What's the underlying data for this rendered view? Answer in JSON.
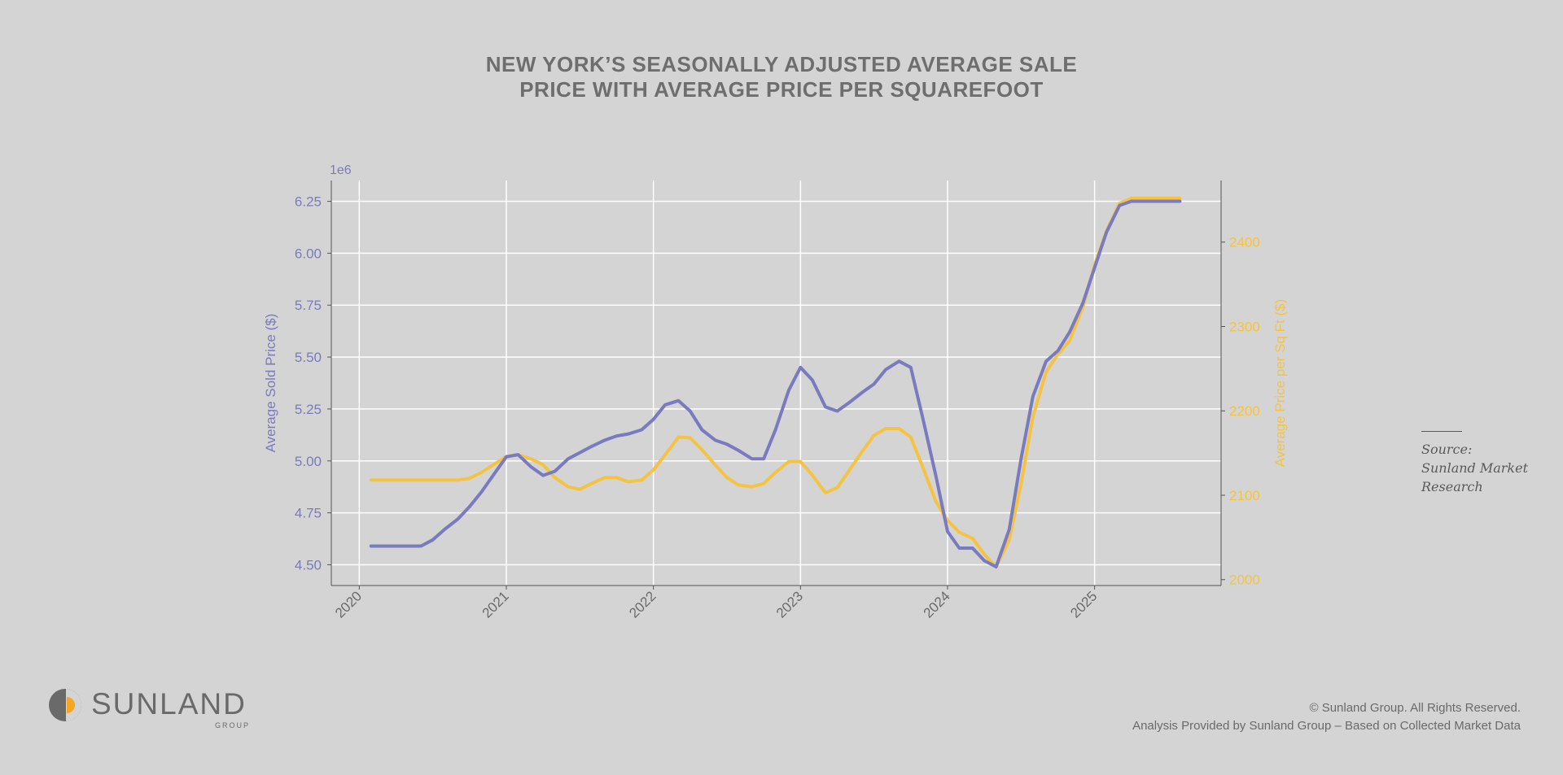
{
  "title_lines": [
    "NEW YORK’S SEASONALLY ADJUSTED AVERAGE SALE",
    "PRICE WITH AVERAGE PRICE PER SQUAREFOOT"
  ],
  "chart_data": {
    "type": "line",
    "title": "NEW YORK’S SEASONALLY ADJUSTED AVERAGE SALE PRICE WITH AVERAGE PRICE PER SQUAREFOOT",
    "xlabel": "",
    "x_ticks": [
      "2020",
      "2021",
      "2022",
      "2023",
      "2024",
      "2025"
    ],
    "x_tick_values": [
      2020.0,
      2021.0,
      2022.0,
      2023.0,
      2024.0,
      2025.0
    ],
    "xlim": [
      2019.81,
      2025.86
    ],
    "grid": true,
    "y_left": {
      "label": "Average Sold Price ($)",
      "offset_label": "1e6",
      "ticks": [
        "4.50",
        "4.75",
        "5.00",
        "5.25",
        "5.50",
        "5.75",
        "6.00",
        "6.25"
      ],
      "tick_values": [
        4.5,
        4.75,
        5.0,
        5.25,
        5.5,
        5.75,
        6.0,
        6.25
      ],
      "ylim": [
        4.4,
        6.35
      ],
      "color": "#7a7abf"
    },
    "y_right": {
      "label": "Average Price per Sq Ft ($)",
      "ticks": [
        "2000",
        "2100",
        "2200",
        "2300",
        "2400"
      ],
      "tick_values": [
        2000,
        2100,
        2200,
        2300,
        2400
      ],
      "ylim": [
        1993,
        2473
      ],
      "color": "#f5c342"
    },
    "series": [
      {
        "name": "Average Sold Price",
        "axis": "left",
        "color": "#7a7abf",
        "points": [
          [
            2020.08,
            4.59
          ],
          [
            2020.17,
            4.59
          ],
          [
            2020.25,
            4.59
          ],
          [
            2020.33,
            4.59
          ],
          [
            2020.42,
            4.59
          ],
          [
            2020.5,
            4.62
          ],
          [
            2020.58,
            4.67
          ],
          [
            2020.67,
            4.72
          ],
          [
            2020.75,
            4.78
          ],
          [
            2020.83,
            4.85
          ],
          [
            2020.92,
            4.94
          ],
          [
            2021.0,
            5.02
          ],
          [
            2021.08,
            5.03
          ],
          [
            2021.17,
            4.97
          ],
          [
            2021.25,
            4.93
          ],
          [
            2021.33,
            4.95
          ],
          [
            2021.42,
            5.01
          ],
          [
            2021.5,
            5.04
          ],
          [
            2021.58,
            5.07
          ],
          [
            2021.67,
            5.1
          ],
          [
            2021.75,
            5.12
          ],
          [
            2021.83,
            5.13
          ],
          [
            2021.92,
            5.15
          ],
          [
            2022.0,
            5.2
          ],
          [
            2022.08,
            5.27
          ],
          [
            2022.17,
            5.29
          ],
          [
            2022.25,
            5.24
          ],
          [
            2022.33,
            5.15
          ],
          [
            2022.42,
            5.1
          ],
          [
            2022.5,
            5.08
          ],
          [
            2022.58,
            5.05
          ],
          [
            2022.67,
            5.01
          ],
          [
            2022.75,
            5.01
          ],
          [
            2022.83,
            5.15
          ],
          [
            2022.92,
            5.34
          ],
          [
            2023.0,
            5.45
          ],
          [
            2023.08,
            5.39
          ],
          [
            2023.17,
            5.26
          ],
          [
            2023.25,
            5.24
          ],
          [
            2023.33,
            5.28
          ],
          [
            2023.42,
            5.33
          ],
          [
            2023.5,
            5.37
          ],
          [
            2023.58,
            5.44
          ],
          [
            2023.67,
            5.48
          ],
          [
            2023.75,
            5.45
          ],
          [
            2023.83,
            5.21
          ],
          [
            2023.92,
            4.93
          ],
          [
            2024.0,
            4.66
          ],
          [
            2024.08,
            4.58
          ],
          [
            2024.17,
            4.58
          ],
          [
            2024.25,
            4.52
          ],
          [
            2024.33,
            4.49
          ],
          [
            2024.42,
            4.67
          ],
          [
            2024.5,
            5.01
          ],
          [
            2024.58,
            5.31
          ],
          [
            2024.67,
            5.48
          ],
          [
            2024.75,
            5.53
          ],
          [
            2024.83,
            5.62
          ],
          [
            2024.92,
            5.76
          ],
          [
            2025.0,
            5.93
          ],
          [
            2025.08,
            6.1
          ],
          [
            2025.17,
            6.23
          ],
          [
            2025.25,
            6.25
          ],
          [
            2025.33,
            6.25
          ],
          [
            2025.42,
            6.25
          ],
          [
            2025.5,
            6.25
          ],
          [
            2025.58,
            6.25
          ]
        ]
      },
      {
        "name": "Average Price per Sq Ft",
        "axis": "right",
        "color": "#f5c342",
        "points": [
          [
            2020.08,
            2118
          ],
          [
            2020.17,
            2118
          ],
          [
            2020.25,
            2118
          ],
          [
            2020.33,
            2118
          ],
          [
            2020.42,
            2118
          ],
          [
            2020.5,
            2118
          ],
          [
            2020.58,
            2118
          ],
          [
            2020.67,
            2118
          ],
          [
            2020.75,
            2120
          ],
          [
            2020.83,
            2127
          ],
          [
            2020.92,
            2137
          ],
          [
            2021.0,
            2146
          ],
          [
            2021.08,
            2148
          ],
          [
            2021.17,
            2143
          ],
          [
            2021.25,
            2136
          ],
          [
            2021.33,
            2121
          ],
          [
            2021.42,
            2110
          ],
          [
            2021.5,
            2107
          ],
          [
            2021.58,
            2114
          ],
          [
            2021.67,
            2121
          ],
          [
            2021.75,
            2121
          ],
          [
            2021.83,
            2116
          ],
          [
            2021.92,
            2118
          ],
          [
            2022.0,
            2130
          ],
          [
            2022.08,
            2148
          ],
          [
            2022.17,
            2169
          ],
          [
            2022.25,
            2168
          ],
          [
            2022.33,
            2154
          ],
          [
            2022.42,
            2136
          ],
          [
            2022.5,
            2121
          ],
          [
            2022.58,
            2112
          ],
          [
            2022.67,
            2110
          ],
          [
            2022.75,
            2114
          ],
          [
            2022.83,
            2127
          ],
          [
            2022.92,
            2140
          ],
          [
            2023.0,
            2140
          ],
          [
            2023.08,
            2124
          ],
          [
            2023.17,
            2103
          ],
          [
            2023.25,
            2109
          ],
          [
            2023.33,
            2129
          ],
          [
            2023.42,
            2152
          ],
          [
            2023.5,
            2171
          ],
          [
            2023.58,
            2179
          ],
          [
            2023.67,
            2179
          ],
          [
            2023.75,
            2169
          ],
          [
            2023.83,
            2134
          ],
          [
            2023.92,
            2093
          ],
          [
            2024.0,
            2070
          ],
          [
            2024.08,
            2056
          ],
          [
            2024.17,
            2049
          ],
          [
            2024.25,
            2030
          ],
          [
            2024.33,
            2015
          ],
          [
            2024.42,
            2047
          ],
          [
            2024.5,
            2114
          ],
          [
            2024.58,
            2193
          ],
          [
            2024.67,
            2246
          ],
          [
            2024.75,
            2267
          ],
          [
            2024.83,
            2283
          ],
          [
            2024.92,
            2323
          ],
          [
            2025.0,
            2373
          ],
          [
            2025.08,
            2413
          ],
          [
            2025.17,
            2446
          ],
          [
            2025.25,
            2452
          ],
          [
            2025.33,
            2452
          ],
          [
            2025.42,
            2452
          ],
          [
            2025.5,
            2452
          ],
          [
            2025.58,
            2452
          ]
        ]
      }
    ]
  },
  "source": {
    "lines": [
      "Source:",
      "Sunland Market",
      "Research"
    ]
  },
  "logo": {
    "word": "SUNLAND",
    "sub": "GROUP"
  },
  "footer": {
    "copyright": "© Sunland Group. All Rights Reserved.",
    "analysis": "Analysis Provided by Sunland Group – Based on Collected Market Data"
  },
  "colors": {
    "background": "#d4d4d4",
    "primary_series": "#7a7abf",
    "secondary_series": "#f5c342",
    "text_gray": "#6e6e6e"
  }
}
